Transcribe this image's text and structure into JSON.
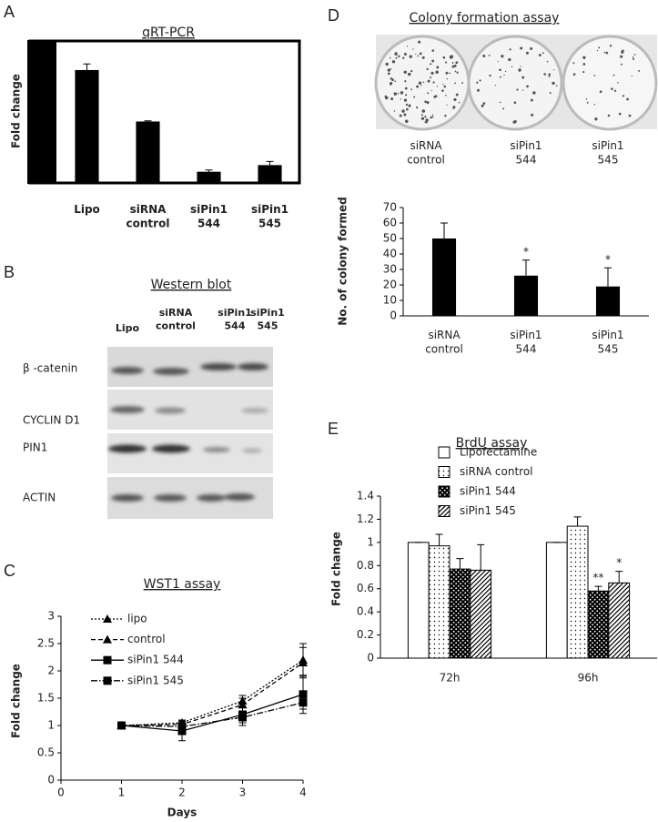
{
  "panel_labels": [
    "A",
    "B",
    "C",
    "D",
    "E"
  ],
  "chart_data": [
    {
      "type": "bar",
      "title": "qRT-PCR",
      "y_label": "Fold change",
      "categories": [
        "Lipo",
        "siRNA control",
        "siPin1 544",
        "siPin1 545"
      ],
      "values": [
        1.85,
        1,
        0.17,
        0.28
      ],
      "errors": [
        0.1,
        0.01,
        0.03,
        0.06
      ],
      "color": "#000000",
      "ylim": [
        0,
        2.33
      ]
    },
    {
      "type": "line",
      "title": "WST1 assay",
      "x_label": "Days",
      "y_label": "Fold change",
      "x": [
        1,
        2,
        3,
        4
      ],
      "series": [
        {
          "name": "lipo",
          "color": "#000000",
          "dash": "dotted",
          "marker": "triangle",
          "values": [
            1,
            1.05,
            1.45,
            2.2
          ],
          "errors": [
            0,
            0.05,
            0.1,
            0.3
          ]
        },
        {
          "name": "control",
          "color": "#000000",
          "dash": "dashed",
          "marker": "triangle",
          "values": [
            1,
            1.02,
            1.38,
            2.15
          ],
          "errors": [
            0,
            0.05,
            0.12,
            0.28
          ]
        },
        {
          "name": "siPin1 544",
          "color": "#000000",
          "dash": "solid",
          "marker": "square",
          "values": [
            1,
            0.9,
            1.2,
            1.57
          ],
          "errors": [
            0,
            0.18,
            0.2,
            0.35
          ]
        },
        {
          "name": "siPin1 545",
          "color": "#000000",
          "dash": "dashdot",
          "marker": "square",
          "values": [
            1,
            0.98,
            1.15,
            1.42
          ],
          "errors": [
            0,
            0.1,
            0.1,
            0.12
          ]
        }
      ],
      "xlim": [
        0,
        4
      ],
      "xticks": [
        0,
        1,
        2,
        3,
        4
      ],
      "ylim": [
        0,
        3
      ],
      "yticks": [
        0,
        0.5,
        1,
        1.5,
        2,
        2.5,
        3
      ],
      "legend": "upper left"
    },
    {
      "type": "bar",
      "y_label": "No. of colony formed",
      "categories": [
        "siRNA control",
        "siPin1 544",
        "siPin1 545"
      ],
      "values": [
        50,
        26,
        19
      ],
      "errors": [
        10,
        10,
        12
      ],
      "annotations": [
        null,
        "*",
        "*"
      ],
      "color": "#000000",
      "ylim": [
        0,
        70
      ],
      "yticks": [
        0,
        10,
        20,
        30,
        40,
        50,
        60,
        70
      ]
    },
    {
      "type": "grouped_bar",
      "title": "BrdU assay",
      "y_label": "Fold change",
      "categories": [
        "72h",
        "96h"
      ],
      "series": [
        {
          "name": "Lipofectamine",
          "color": "#ffffff",
          "pattern": "none",
          "values": [
            1,
            1
          ],
          "errors": [
            0,
            0
          ]
        },
        {
          "name": "siRNA control",
          "color": "#ffffff",
          "pattern": "dots",
          "values": [
            0.97,
            1.14
          ],
          "errors": [
            0.1,
            0.08
          ]
        },
        {
          "name": "siPin1 544",
          "color": "#000000",
          "pattern": "checker",
          "values": [
            0.77,
            0.58
          ],
          "errors": [
            0.09,
            0.04
          ],
          "annotations": [
            null,
            "**"
          ]
        },
        {
          "name": "siPin1 545",
          "color": "#ffffff",
          "pattern": "hatch",
          "values": [
            0.76,
            0.65
          ],
          "errors": [
            0.22,
            0.1
          ],
          "annotations": [
            null,
            "*"
          ]
        }
      ],
      "ylim": [
        0,
        1.4
      ],
      "yticks": [
        0,
        0.2,
        0.4,
        0.6,
        0.8,
        1,
        1.2,
        1.4
      ],
      "legend": "top"
    }
  ],
  "western_blot": {
    "title": "Western blot",
    "lanes": [
      "Lipo",
      "siRNA control",
      "siPin1 544",
      "siPin1 545"
    ],
    "rows": [
      "β -catenin",
      "CYCLIN D1",
      "PIN1",
      "ACTIN"
    ]
  },
  "colony_images": {
    "title": "Colony formation assay",
    "labels": [
      "siRNA control",
      "siPin1 544",
      "siPin1 545"
    ]
  }
}
